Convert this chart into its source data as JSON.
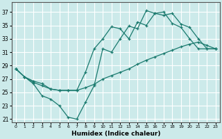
{
  "xlabel": "Humidex (Indice chaleur)",
  "bg_color": "#cceaea",
  "grid_color": "#ffffff",
  "line_color": "#1a7a6e",
  "xlim": [
    -0.5,
    23.5
  ],
  "ylim": [
    20.5,
    38.5
  ],
  "xticks": [
    0,
    1,
    2,
    3,
    4,
    5,
    6,
    7,
    8,
    9,
    10,
    11,
    12,
    13,
    14,
    15,
    16,
    17,
    18,
    19,
    20,
    21,
    22,
    23
  ],
  "yticks": [
    21,
    23,
    25,
    27,
    29,
    31,
    33,
    35,
    37
  ],
  "line1_x": [
    0,
    1,
    2,
    3,
    4,
    5,
    6,
    7,
    8,
    9,
    10,
    11,
    12,
    13,
    14,
    15,
    16,
    17,
    18,
    19,
    20,
    21,
    22,
    23
  ],
  "line1_y": [
    28.5,
    27.3,
    26.3,
    24.5,
    24.0,
    23.0,
    21.3,
    21.0,
    23.5,
    26.0,
    31.5,
    31.0,
    33.0,
    34.9,
    34.5,
    37.2,
    36.8,
    36.5,
    36.8,
    35.2,
    34.7,
    33.0,
    31.5,
    31.5
  ],
  "line2_x": [
    0,
    1,
    2,
    3,
    4,
    5,
    6,
    7,
    8,
    9,
    10,
    11,
    12,
    13,
    14,
    15,
    16,
    17,
    18,
    19,
    20,
    21,
    22,
    23
  ],
  "line2_y": [
    28.5,
    27.3,
    26.7,
    26.3,
    25.5,
    25.3,
    25.3,
    25.3,
    28.0,
    31.5,
    33.0,
    34.8,
    34.5,
    33.0,
    35.5,
    35.0,
    36.8,
    37.0,
    35.3,
    34.7,
    33.0,
    31.5,
    31.5,
    31.5
  ],
  "line3_x": [
    0,
    1,
    2,
    3,
    4,
    5,
    6,
    7,
    8,
    9,
    10,
    11,
    12,
    13,
    14,
    15,
    16,
    17,
    18,
    19,
    20,
    21,
    22,
    23
  ],
  "line3_y": [
    28.5,
    27.3,
    26.5,
    26.0,
    25.5,
    25.3,
    25.3,
    25.3,
    25.7,
    26.2,
    27.0,
    27.5,
    28.0,
    28.5,
    29.2,
    29.8,
    30.3,
    30.8,
    31.3,
    31.8,
    32.2,
    32.5,
    32.0,
    31.5
  ]
}
